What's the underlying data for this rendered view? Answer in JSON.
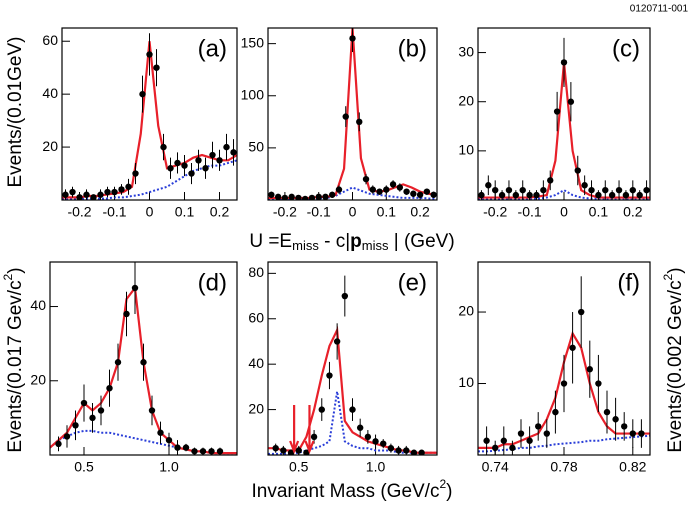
{
  "figure_id": "0120711-001",
  "x_label_top": [
    "U =E",
    "miss",
    " - c|",
    "p",
    "miss",
    " | (GeV)"
  ],
  "y_label_top": "Events/(0.01GeV)",
  "y_label_bottom_left": [
    "Events/(0.017 Gev/c",
    "2",
    ")"
  ],
  "y_label_bottom_right": [
    "Events/(0.002 Gev/c",
    "2",
    ")"
  ],
  "x_label_bottom": [
    "Invariant Mass (GeV/c",
    "2",
    ")"
  ],
  "chart_data": [
    {
      "type": "scatter",
      "label": "(a)",
      "xlim": [
        -0.25,
        0.25
      ],
      "ylim": [
        0,
        65
      ],
      "xticks": [
        -0.2,
        -0.1,
        0,
        0.1,
        0.2
      ],
      "yticks": [
        20,
        40,
        60
      ],
      "x": [
        -0.24,
        -0.22,
        -0.2,
        -0.18,
        -0.16,
        -0.14,
        -0.12,
        -0.1,
        -0.08,
        -0.06,
        -0.04,
        -0.02,
        0,
        0.02,
        0.04,
        0.06,
        0.08,
        0.1,
        0.12,
        0.14,
        0.16,
        0.18,
        0.2,
        0.22,
        0.24
      ],
      "values": [
        2,
        3,
        1,
        2,
        1,
        2,
        3,
        3,
        4,
        5,
        10,
        40,
        55,
        50,
        20,
        12,
        14,
        13,
        10,
        15,
        12,
        17,
        15,
        20,
        18
      ],
      "errors": [
        2,
        2,
        1,
        2,
        1,
        2,
        2,
        2,
        2,
        3,
        4,
        7,
        8,
        7,
        5,
        4,
        4,
        4,
        4,
        4,
        4,
        5,
        4,
        5,
        5
      ],
      "curve_x": [
        -0.25,
        -0.225,
        -0.2,
        -0.175,
        -0.15,
        -0.125,
        -0.1,
        -0.075,
        -0.05,
        -0.025,
        0,
        0.025,
        0.05,
        0.075,
        0.1,
        0.125,
        0.15,
        0.175,
        0.2,
        0.225,
        0.25
      ],
      "fit": [
        1,
        1,
        1,
        1.5,
        1.5,
        2,
        2.5,
        3,
        5,
        25,
        60,
        28,
        12,
        13,
        14,
        16,
        17,
        16,
        15,
        15,
        17
      ],
      "background": [
        0.5,
        0.5,
        0.5,
        0.5,
        0.5,
        0.5,
        1,
        1,
        1.5,
        2,
        3,
        4,
        5,
        7,
        9,
        11,
        12,
        13,
        13,
        14,
        15
      ],
      "fit_color": "#e8202a",
      "background_color": "#2a3ed8"
    },
    {
      "type": "scatter",
      "label": "(b)",
      "xlim": [
        -0.25,
        0.25
      ],
      "ylim": [
        0,
        165
      ],
      "xticks": [
        -0.2,
        -0.1,
        0,
        0.1,
        0.2
      ],
      "yticks": [
        50,
        100,
        150
      ],
      "x": [
        -0.24,
        -0.22,
        -0.2,
        -0.18,
        -0.16,
        -0.14,
        -0.12,
        -0.1,
        -0.08,
        -0.06,
        -0.04,
        -0.02,
        0,
        0.02,
        0.04,
        0.06,
        0.08,
        0.1,
        0.12,
        0.14,
        0.16,
        0.18,
        0.2,
        0.22,
        0.24
      ],
      "values": [
        5,
        3,
        2,
        3,
        2,
        1,
        2,
        3,
        3,
        5,
        10,
        80,
        155,
        75,
        20,
        10,
        8,
        10,
        15,
        12,
        8,
        6,
        5,
        8,
        5
      ],
      "errors": [
        3,
        2,
        2,
        2,
        2,
        1,
        2,
        2,
        2,
        3,
        4,
        10,
        13,
        9,
        5,
        4,
        3,
        4,
        4,
        4,
        3,
        3,
        3,
        3,
        3
      ],
      "curve_x": [
        -0.25,
        -0.225,
        -0.2,
        -0.175,
        -0.15,
        -0.125,
        -0.1,
        -0.075,
        -0.05,
        -0.025,
        0,
        0.025,
        0.05,
        0.075,
        0.1,
        0.125,
        0.15,
        0.175,
        0.2,
        0.225,
        0.25
      ],
      "fit": [
        2,
        2,
        2,
        2,
        2,
        2,
        3,
        3,
        5,
        30,
        165,
        40,
        10,
        8,
        9,
        12,
        15,
        12,
        8,
        6,
        5
      ],
      "background": [
        1,
        1,
        1,
        1,
        1,
        1,
        1.5,
        2,
        4,
        8,
        12,
        9,
        6,
        5,
        4,
        3,
        2,
        2,
        2,
        1.5,
        1
      ],
      "fit_color": "#e8202a",
      "background_color": "#2a3ed8"
    },
    {
      "type": "scatter",
      "label": "(c)",
      "xlim": [
        -0.25,
        0.25
      ],
      "ylim": [
        0,
        35
      ],
      "xticks": [
        -0.2,
        -0.1,
        0,
        0.1,
        0.2
      ],
      "yticks": [
        10,
        20,
        30
      ],
      "x": [
        -0.24,
        -0.22,
        -0.2,
        -0.18,
        -0.16,
        -0.14,
        -0.12,
        -0.1,
        -0.08,
        -0.06,
        -0.04,
        -0.02,
        0,
        0.02,
        0.04,
        0.06,
        0.08,
        0.1,
        0.12,
        0.14,
        0.16,
        0.18,
        0.2,
        0.22,
        0.24
      ],
      "values": [
        1,
        3,
        2,
        1,
        2,
        1,
        2,
        1,
        1,
        2,
        4,
        18,
        28,
        20,
        6,
        3,
        2,
        1,
        2,
        1,
        2,
        1,
        2,
        1,
        2
      ],
      "errors": [
        1,
        2,
        2,
        1,
        2,
        1,
        2,
        1,
        1,
        2,
        2,
        4,
        5,
        4,
        3,
        2,
        2,
        1,
        2,
        1,
        2,
        1,
        2,
        1,
        2
      ],
      "curve_x": [
        -0.25,
        -0.225,
        -0.2,
        -0.175,
        -0.15,
        -0.125,
        -0.1,
        -0.075,
        -0.05,
        -0.025,
        0,
        0.025,
        0.05,
        0.075,
        0.1,
        0.125,
        0.15,
        0.175,
        0.2,
        0.225,
        0.25
      ],
      "fit": [
        0.5,
        0.5,
        0.5,
        0.5,
        0.5,
        0.5,
        0.5,
        0.7,
        1,
        8,
        28,
        10,
        2,
        1,
        0.5,
        0.5,
        0.5,
        0.5,
        0.5,
        0.5,
        0.5
      ],
      "background": [
        0.2,
        0.2,
        0.2,
        0.2,
        0.2,
        0.2,
        0.3,
        0.3,
        0.5,
        1,
        2,
        1,
        0.5,
        0.3,
        0.3,
        0.2,
        0.2,
        0.2,
        0.2,
        0.2,
        0.2
      ],
      "fit_color": "#e8202a",
      "background_color": "#2a3ed8"
    },
    {
      "type": "scatter",
      "label": "(d)",
      "xlim": [
        0.3,
        1.4
      ],
      "ylim": [
        0,
        52
      ],
      "xticks": [
        0.5,
        {
          "value": 1,
          "label": "1.0"
        }
      ],
      "yticks": [
        20,
        40
      ],
      "x": [
        0.35,
        0.4,
        0.45,
        0.5,
        0.55,
        0.6,
        0.65,
        0.7,
        0.75,
        0.8,
        0.85,
        0.9,
        0.95,
        1.0,
        1.05,
        1.1,
        1.15,
        1.2,
        1.25,
        1.3
      ],
      "values": [
        3,
        5,
        8,
        14,
        10,
        12,
        18,
        25,
        38,
        45,
        25,
        12,
        6,
        4,
        2,
        2,
        1,
        1,
        1,
        1
      ],
      "errors": [
        2,
        3,
        4,
        5,
        4,
        4,
        5,
        5,
        6,
        7,
        5,
        4,
        3,
        2,
        2,
        1,
        1,
        1,
        1,
        1
      ],
      "curve_x": [
        0.3,
        0.35,
        0.4,
        0.45,
        0.5,
        0.55,
        0.6,
        0.65,
        0.7,
        0.75,
        0.8,
        0.85,
        0.9,
        0.95,
        1.0,
        1.05,
        1.1,
        1.15,
        1.2,
        1.25,
        1.3,
        1.35,
        1.4
      ],
      "fit": [
        2,
        4,
        6,
        10,
        14,
        12,
        14,
        18,
        25,
        42,
        45,
        25,
        12,
        6,
        4,
        2,
        1.5,
        1,
        1,
        0.5,
        0.5,
        0.5,
        0.5
      ],
      "background": [
        2,
        4,
        5,
        6,
        6.5,
        6.5,
        6,
        6,
        5.5,
        5,
        4.5,
        4,
        3.5,
        3,
        2.5,
        2,
        1.5,
        1,
        1,
        0.5,
        0.5,
        0.5,
        0.5
      ],
      "fit_color": "#e8202a",
      "background_color": "#2a3ed8"
    },
    {
      "type": "scatter",
      "label": "(e)",
      "xlim": [
        0.3,
        1.4
      ],
      "ylim": [
        0,
        85
      ],
      "xticks": [
        0.5,
        {
          "value": 1,
          "label": "1.0"
        }
      ],
      "yticks": [
        20,
        40,
        60,
        80
      ],
      "x": [
        0.35,
        0.4,
        0.45,
        0.5,
        0.55,
        0.6,
        0.65,
        0.7,
        0.75,
        0.8,
        0.85,
        0.9,
        0.95,
        1.0,
        1.05,
        1.1,
        1.15,
        1.2,
        1.25,
        1.3
      ],
      "values": [
        3,
        2,
        1,
        2,
        1,
        8,
        20,
        35,
        50,
        70,
        20,
        12,
        8,
        6,
        5,
        3,
        2,
        2,
        1,
        1
      ],
      "errors": [
        2,
        2,
        1,
        2,
        1,
        3,
        5,
        6,
        8,
        9,
        5,
        4,
        3,
        3,
        2,
        2,
        2,
        2,
        1,
        1
      ],
      "curve_x": [
        0.3,
        0.35,
        0.4,
        0.45,
        0.5,
        0.55,
        0.6,
        0.65,
        0.7,
        0.75,
        0.8,
        0.85,
        0.9,
        0.95,
        1.0,
        1.05,
        1.1,
        1.15,
        1.2,
        1.25,
        1.3,
        1.35,
        1.4
      ],
      "fit": [
        3,
        3,
        2,
        2,
        2,
        8,
        20,
        35,
        48,
        55,
        15,
        10,
        8,
        6,
        5,
        4,
        3,
        2,
        2,
        1,
        1,
        1,
        1
      ],
      "background": [
        0.5,
        0.5,
        0.5,
        0.5,
        1,
        2,
        3,
        4,
        6,
        28,
        6,
        4,
        3,
        3,
        2,
        2,
        2,
        1,
        1,
        1,
        1,
        1,
        1
      ],
      "arrows_x": [
        0.47,
        0.57
      ],
      "fit_color": "#e8202a",
      "background_color": "#2a3ed8"
    },
    {
      "type": "scatter",
      "label": "(f)",
      "xlim": [
        0.73,
        0.83
      ],
      "ylim": [
        0,
        27
      ],
      "xticks": [
        0.74,
        0.78,
        0.82
      ],
      "yticks": [
        10,
        20
      ],
      "x": [
        0.735,
        0.74,
        0.745,
        0.75,
        0.755,
        0.76,
        0.765,
        0.77,
        0.775,
        0.78,
        0.785,
        0.79,
        0.795,
        0.8,
        0.805,
        0.81,
        0.815,
        0.82,
        0.825
      ],
      "values": [
        2,
        1,
        2,
        1,
        3,
        2,
        4,
        3,
        6,
        10,
        15,
        20,
        12,
        10,
        6,
        5,
        4,
        3,
        3
      ],
      "errors": [
        2,
        1,
        2,
        1,
        2,
        2,
        2,
        2,
        3,
        4,
        5,
        5,
        4,
        4,
        3,
        3,
        2,
        2,
        2
      ],
      "curve_x": [
        0.73,
        0.735,
        0.74,
        0.745,
        0.75,
        0.755,
        0.76,
        0.765,
        0.77,
        0.775,
        0.78,
        0.785,
        0.79,
        0.795,
        0.8,
        0.805,
        0.81,
        0.815,
        0.82,
        0.825,
        0.83
      ],
      "fit": [
        1,
        1,
        1,
        1.5,
        1.5,
        2,
        2.5,
        3,
        5,
        8,
        13,
        17,
        15,
        10,
        6,
        4,
        3,
        3,
        3,
        3,
        3
      ],
      "background": [
        0.5,
        0.5,
        0.6,
        0.7,
        0.8,
        1,
        1,
        1.2,
        1.3,
        1.5,
        1.6,
        1.7,
        1.8,
        2,
        2,
        2.2,
        2.3,
        2.4,
        2.5,
        2.6,
        2.7
      ],
      "fit_color": "#e8202a",
      "background_color": "#2a3ed8"
    }
  ]
}
